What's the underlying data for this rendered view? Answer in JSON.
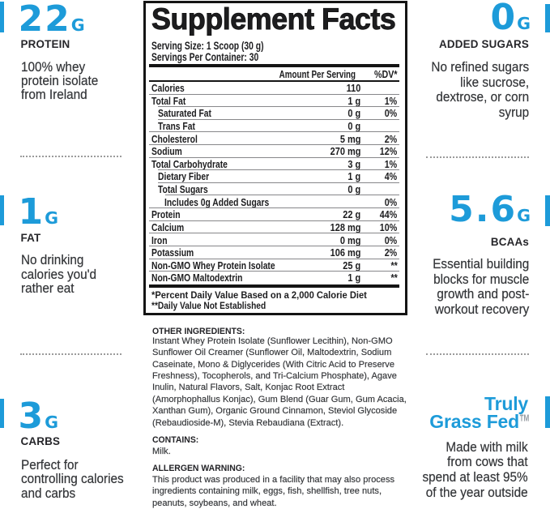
{
  "brand_color": "#1d9bd9",
  "left_column": {
    "stats": [
      {
        "value": "22",
        "unit": "G",
        "label": "PROTEIN",
        "desc_lines": [
          "100% whey",
          "protein isolate",
          "from Ireland"
        ]
      },
      {
        "value": "1",
        "unit": "G",
        "label": "FAT",
        "desc_lines": [
          "No drinking",
          "calories you'd",
          "rather eat"
        ]
      },
      {
        "value": "3",
        "unit": "G",
        "label": "CARBS",
        "desc_lines": [
          "Perfect for",
          "controlling calories",
          "and carbs"
        ]
      }
    ]
  },
  "right_column": {
    "stats": [
      {
        "value": "0",
        "unit": "G",
        "label": "ADDED SUGARS",
        "desc_lines": [
          "No refined sugars",
          "like sucrose,",
          "dextrose, or corn",
          "syrup"
        ]
      },
      {
        "value": "5.6",
        "unit": "G",
        "label": "BCAAs",
        "desc_lines": [
          "Essential building",
          "blocks for muscle",
          "growth and post-",
          "workout recovery"
        ]
      }
    ],
    "badge": {
      "title_lines": [
        "Truly",
        "Grass Fed"
      ],
      "trademark": "™",
      "desc_lines": [
        "Made with milk",
        "from cows that",
        "spend at least 95%",
        "of the year outside"
      ]
    }
  },
  "panel": {
    "title": "Supplement Facts",
    "serving_size": "Serving Size: 1 Scoop (30 g)",
    "servings_per_container": "Servings Per Container: 30",
    "amount_header": "Amount Per Serving",
    "dv_header": "%DV*",
    "rows": [
      {
        "name": "Calories",
        "amount": "110",
        "dv": ""
      },
      {
        "name": "Total Fat",
        "amount": "1 g",
        "dv": "1%"
      },
      {
        "name": "Saturated Fat",
        "amount": "0 g",
        "dv": "0%"
      },
      {
        "name": "Trans Fat",
        "amount": "0 g",
        "dv": ""
      },
      {
        "name": "Cholesterol",
        "amount": "5 mg",
        "dv": "2%"
      },
      {
        "name": "Sodium",
        "amount": "270 mg",
        "dv": "12%"
      },
      {
        "name": "Total Carbohydrate",
        "amount": "3 g",
        "dv": "1%"
      },
      {
        "name": "Dietary Fiber",
        "amount": "1 g",
        "dv": "4%"
      },
      {
        "name": "Total Sugars",
        "amount": "0 g",
        "dv": ""
      },
      {
        "name": "Includes 0g Added Sugars",
        "amount": "",
        "dv": "0%"
      },
      {
        "name": "Protein",
        "amount": "22 g",
        "dv": "44%"
      },
      {
        "name": "Calcium",
        "amount": "128 mg",
        "dv": "10%"
      },
      {
        "name": "Iron",
        "amount": "0 mg",
        "dv": "0%"
      },
      {
        "name": "Potassium",
        "amount": "106 mg",
        "dv": "2%"
      },
      {
        "name": "Non-GMO Whey Protein Isolate",
        "amount": "25 g",
        "dv": "**"
      },
      {
        "name": "Non-GMO Maltodextrin",
        "amount": "1 g",
        "dv": "**"
      }
    ],
    "footnotes": [
      "*Percent Daily Value Based on a 2,000 Calorie Diet",
      "**Daily Value Not Established"
    ]
  },
  "other_ingredients": {
    "heading": "OTHER INGREDIENTS:",
    "lines": [
      "Instant Whey Protein Isolate (Sunflower Lecithin), Non-GMO",
      "Sunflower Oil Creamer (Sunflower Oil, Maltodextrin, Sodium",
      "Caseinate, Mono & Diglycerides (With Citric Acid to Preserve",
      "Freshness), Tocopherols, and Tri-Calcium Phosphate), Agave",
      "Inulin, Natural Flavors, Salt, Konjac Root Extract",
      "(Amorphophallus Konjac), Gum Blend (Guar Gum, Gum Acacia,",
      "Xanthan Gum), Organic Ground Cinnamon, Steviol Glycoside",
      "(Rebaudioside-M), Stevia Rebaudiana (Extract)."
    ]
  },
  "contains": {
    "heading": "CONTAINS:",
    "text": "Milk."
  },
  "allergen": {
    "heading": "ALLERGEN WARNING:",
    "lines": [
      "This product was produced in a facility that may also process",
      "ingredients containing milk, eggs, fish, shellfish, tree nuts,",
      "peanuts, soybeans, and wheat."
    ]
  }
}
